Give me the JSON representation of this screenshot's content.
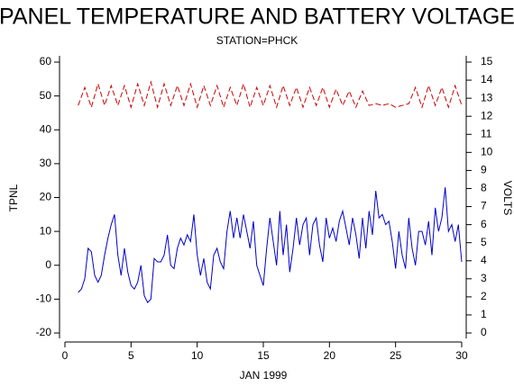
{
  "chart_data": {
    "type": "line",
    "title": "PANEL TEMPERATURE AND BATTERY VOLTAGE",
    "subtitle": "STATION=PHCK",
    "x_label": "JAN 1999",
    "y_label": "TPNL",
    "y2_label": "VOLTS",
    "xlim": [
      0,
      30
    ],
    "xticks": [
      0,
      5,
      10,
      15,
      20,
      25,
      30
    ],
    "ylim": [
      -20,
      60
    ],
    "yticks": [
      -20,
      -10,
      0,
      10,
      20,
      30,
      40,
      50,
      60
    ],
    "y2lim": [
      0,
      15
    ],
    "y2ticks": [
      0,
      1,
      2,
      3,
      4,
      5,
      6,
      7,
      8,
      9,
      10,
      11,
      12,
      13,
      14,
      15
    ],
    "grid": false,
    "series": [
      {
        "color": "#0000cc",
        "dashed": false,
        "x": [
          1,
          1.25,
          1.5,
          1.75,
          2,
          2.25,
          2.5,
          2.75,
          3,
          3.25,
          3.5,
          3.75,
          4,
          4.25,
          4.5,
          4.75,
          5,
          5.25,
          5.5,
          5.75,
          6,
          6.25,
          6.5,
          6.75,
          7,
          7.25,
          7.5,
          7.75,
          8,
          8.25,
          8.5,
          8.75,
          9,
          9.25,
          9.5,
          9.75,
          10,
          10.25,
          10.5,
          10.75,
          11,
          11.25,
          11.5,
          11.75,
          12,
          12.25,
          12.5,
          12.75,
          13,
          13.25,
          13.5,
          13.75,
          14,
          14.25,
          14.5,
          14.75,
          15,
          15.25,
          15.5,
          15.75,
          16,
          16.25,
          16.5,
          16.75,
          17,
          17.25,
          17.5,
          17.75,
          18,
          18.25,
          18.5,
          18.75,
          19,
          19.25,
          19.5,
          19.75,
          20,
          20.25,
          20.5,
          20.75,
          21,
          21.25,
          21.5,
          21.75,
          22,
          22.25,
          22.5,
          22.75,
          23,
          23.25,
          23.5,
          23.75,
          24,
          24.25,
          24.5,
          24.75,
          25,
          25.25,
          25.5,
          25.75,
          26,
          26.25,
          26.5,
          26.75,
          27,
          27.25,
          27.5,
          27.75,
          28,
          28.25,
          28.5,
          28.75,
          29,
          29.25,
          29.5,
          29.75,
          30
        ],
        "values": [
          -8,
          -7,
          -4,
          5,
          4,
          -3,
          -5,
          -3,
          3,
          8,
          12,
          15,
          3,
          -3,
          5,
          -2,
          -6,
          -7,
          -5,
          0,
          -9,
          -11,
          -10,
          2,
          1,
          1,
          3,
          9,
          0,
          -1,
          5,
          8,
          6,
          9,
          7,
          15,
          3,
          -3,
          2,
          -5,
          -7,
          3,
          5,
          1,
          -1,
          10,
          16,
          8,
          14,
          8,
          15,
          10,
          5,
          13,
          0,
          -3,
          -6,
          5,
          14,
          7,
          0,
          16,
          3,
          12,
          -2,
          5,
          14,
          6,
          12,
          14,
          3,
          12,
          14,
          6,
          1,
          14,
          8,
          11,
          7,
          13,
          16,
          11,
          6,
          14,
          9,
          2,
          14,
          5,
          16,
          9,
          22,
          14,
          15,
          12,
          13,
          7,
          -1,
          10,
          3,
          -1,
          14,
          5,
          0,
          10,
          10,
          6,
          13,
          3,
          17,
          10,
          14,
          23,
          10,
          12,
          7,
          12,
          1
        ]
      },
      {
        "color": "#cc0000",
        "dashed": true,
        "axis": "y2",
        "x": [
          1,
          1.5,
          2,
          2.5,
          3,
          3.5,
          4,
          4.5,
          5,
          5.5,
          6,
          6.5,
          7,
          7.5,
          8,
          8.5,
          9,
          9.5,
          10,
          10.5,
          11,
          11.5,
          12,
          12.5,
          13,
          13.5,
          14,
          14.5,
          15,
          15.5,
          16,
          16.5,
          17,
          17.5,
          18,
          18.5,
          19,
          19.5,
          20,
          20.5,
          21,
          21.5,
          22,
          22.5,
          23,
          23.5,
          24,
          24.5,
          25,
          25.5,
          26,
          26.5,
          27,
          27.5,
          28,
          28.5,
          29,
          29.5,
          30
        ],
        "values": [
          12.6,
          13.6,
          12.5,
          13.8,
          12.6,
          13.7,
          12.6,
          13.7,
          12.5,
          13.8,
          12.6,
          13.9,
          12.5,
          13.8,
          12.6,
          13.7,
          12.6,
          13.8,
          12.5,
          13.7,
          12.6,
          13.7,
          12.5,
          13.6,
          12.6,
          13.8,
          12.5,
          13.6,
          12.6,
          13.7,
          12.5,
          13.7,
          12.6,
          13.6,
          12.5,
          13.6,
          12.6,
          13.6,
          12.5,
          13.5,
          12.6,
          13.4,
          12.5,
          13.4,
          12.6,
          12.7,
          12.6,
          12.7,
          12.5,
          12.6,
          12.7,
          13.6,
          12.5,
          13.7,
          12.6,
          13.6,
          12.5,
          13.7,
          12.6
        ]
      }
    ]
  }
}
